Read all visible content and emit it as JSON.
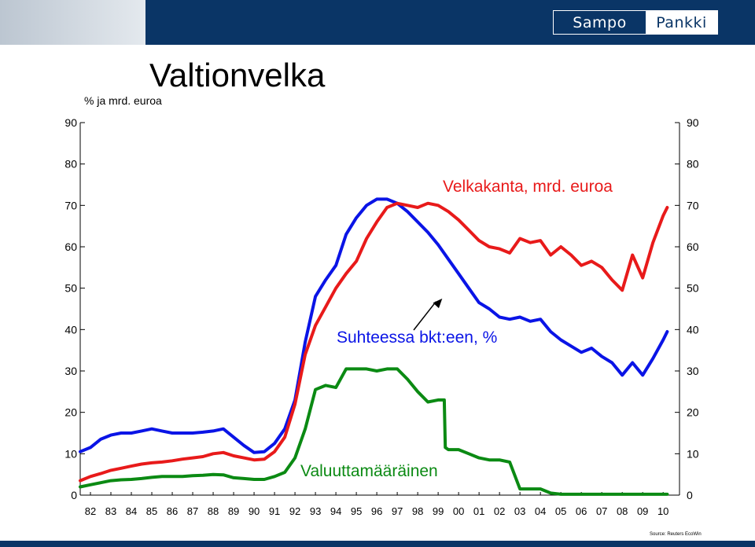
{
  "page": {
    "title": "Valtionvelka",
    "unit_label": "% ja mrd. euroa",
    "logo_left": "Sampo",
    "logo_right": "Pankki",
    "source": "Source: Reuters EcoWin"
  },
  "chart_data": {
    "type": "line",
    "title": "Valtionvelka",
    "ylabel": "% ja mrd. euroa",
    "ylim": [
      0,
      90
    ],
    "yticks": [
      0,
      10,
      20,
      30,
      40,
      50,
      60,
      70,
      80,
      90
    ],
    "xlim": [
      1981.5,
      2010.8
    ],
    "xticks": [
      {
        "x": 1982,
        "label": "82"
      },
      {
        "x": 1983,
        "label": "83"
      },
      {
        "x": 1984,
        "label": "84"
      },
      {
        "x": 1985,
        "label": "85"
      },
      {
        "x": 1986,
        "label": "86"
      },
      {
        "x": 1987,
        "label": "87"
      },
      {
        "x": 1988,
        "label": "88"
      },
      {
        "x": 1989,
        "label": "89"
      },
      {
        "x": 1990,
        "label": "90"
      },
      {
        "x": 1991,
        "label": "91"
      },
      {
        "x": 1992,
        "label": "92"
      },
      {
        "x": 1993,
        "label": "93"
      },
      {
        "x": 1994,
        "label": "94"
      },
      {
        "x": 1995,
        "label": "95"
      },
      {
        "x": 1996,
        "label": "96"
      },
      {
        "x": 1997,
        "label": "97"
      },
      {
        "x": 1998,
        "label": "98"
      },
      {
        "x": 1999,
        "label": "99"
      },
      {
        "x": 2000,
        "label": "00"
      },
      {
        "x": 2001,
        "label": "01"
      },
      {
        "x": 2002,
        "label": "02"
      },
      {
        "x": 2003,
        "label": "03"
      },
      {
        "x": 2004,
        "label": "04"
      },
      {
        "x": 2005,
        "label": "05"
      },
      {
        "x": 2006,
        "label": "06"
      },
      {
        "x": 2007,
        "label": "07"
      },
      {
        "x": 2008,
        "label": "08"
      },
      {
        "x": 2009,
        "label": "09"
      },
      {
        "x": 2010,
        "label": "10"
      }
    ],
    "grid": false,
    "series": [
      {
        "name": "Suhteessa bkt:een, %",
        "color": "#0a14e6",
        "x": [
          1981.5,
          1982.0,
          1982.5,
          1983.0,
          1983.5,
          1984.0,
          1984.5,
          1985.0,
          1985.5,
          1986.0,
          1986.5,
          1987.0,
          1987.5,
          1988.0,
          1988.5,
          1989.0,
          1989.5,
          1990.0,
          1990.5,
          1991.0,
          1991.5,
          1992.0,
          1992.5,
          1993.0,
          1993.5,
          1994.0,
          1994.5,
          1995.0,
          1995.5,
          1996.0,
          1996.5,
          1997.0,
          1997.5,
          1998.0,
          1998.5,
          1999.0,
          1999.5,
          2000.0,
          2000.5,
          2001.0,
          2001.5,
          2002.0,
          2002.5,
          2003.0,
          2003.5,
          2004.0,
          2004.5,
          2005.0,
          2005.5,
          2006.0,
          2006.5,
          2007.0,
          2007.5,
          2008.0,
          2008.5,
          2009.0,
          2009.5,
          2010.0,
          2010.2
        ],
        "y": [
          10.5,
          11.5,
          13.5,
          14.5,
          15.0,
          15.0,
          15.5,
          16.0,
          15.5,
          15.0,
          15.0,
          15.0,
          15.2,
          15.5,
          16.0,
          14.0,
          12.0,
          10.3,
          10.5,
          12.5,
          16.0,
          23.0,
          37.0,
          48.0,
          52.0,
          55.5,
          63.0,
          67.0,
          70.0,
          71.5,
          71.5,
          70.5,
          68.5,
          66.0,
          63.5,
          60.5,
          57.0,
          53.5,
          50.0,
          46.5,
          45.0,
          43.0,
          42.5,
          43.0,
          42.0,
          42.5,
          39.5,
          37.5,
          36.0,
          34.5,
          35.5,
          33.5,
          32.0,
          29.0,
          32.0,
          29.0,
          33.0,
          37.5,
          39.5
        ]
      },
      {
        "name": "Velkakanta, mrd. euroa",
        "color": "#e81a1a",
        "x": [
          1981.5,
          1982.0,
          1982.5,
          1983.0,
          1983.5,
          1984.0,
          1984.5,
          1985.0,
          1985.5,
          1986.0,
          1986.5,
          1987.0,
          1987.5,
          1988.0,
          1988.5,
          1989.0,
          1989.5,
          1990.0,
          1990.5,
          1991.0,
          1991.5,
          1992.0,
          1992.5,
          1993.0,
          1993.5,
          1994.0,
          1994.5,
          1995.0,
          1995.5,
          1996.0,
          1996.5,
          1997.0,
          1997.5,
          1998.0,
          1998.5,
          1999.0,
          1999.5,
          2000.0,
          2000.5,
          2001.0,
          2001.5,
          2002.0,
          2002.5,
          2003.0,
          2003.5,
          2004.0,
          2004.5,
          2005.0,
          2005.5,
          2006.0,
          2006.5,
          2007.0,
          2007.5,
          2008.0,
          2008.5,
          2009.0,
          2009.5,
          2010.0,
          2010.2
        ],
        "y": [
          3.5,
          4.5,
          5.2,
          6.0,
          6.5,
          7.0,
          7.5,
          7.8,
          8.0,
          8.3,
          8.7,
          9.0,
          9.3,
          10.0,
          10.3,
          9.5,
          9.0,
          8.5,
          8.7,
          10.5,
          14.0,
          22.0,
          34.0,
          41.0,
          45.5,
          50.0,
          53.5,
          56.5,
          62.0,
          66.0,
          69.5,
          70.5,
          70.0,
          69.5,
          70.5,
          70.0,
          68.5,
          66.5,
          64.0,
          61.5,
          60.0,
          59.5,
          58.5,
          62.0,
          61.0,
          61.5,
          58.0,
          60.0,
          58.0,
          55.5,
          56.5,
          55.0,
          52.0,
          49.5,
          58.0,
          52.5,
          61.0,
          67.5,
          69.5
        ]
      },
      {
        "name": "Valuuttamääräinen",
        "color": "#0b8a13",
        "x": [
          1981.5,
          1982.0,
          1982.5,
          1983.0,
          1983.5,
          1984.0,
          1984.5,
          1985.0,
          1985.5,
          1986.0,
          1986.5,
          1987.0,
          1987.5,
          1988.0,
          1988.5,
          1989.0,
          1989.5,
          1990.0,
          1990.5,
          1991.0,
          1991.5,
          1992.0,
          1992.5,
          1993.0,
          1993.5,
          1994.0,
          1994.5,
          1995.0,
          1995.5,
          1996.0,
          1996.5,
          1997.0,
          1997.5,
          1998.0,
          1998.5,
          1999.0,
          1999.3,
          1999.35,
          1999.5,
          2000.0,
          2000.5,
          2001.0,
          2001.5,
          2002.0,
          2002.5,
          2003.0,
          2003.5,
          2004.0,
          2004.5,
          2005.0,
          2006.0,
          2007.0,
          2008.0,
          2009.0,
          2010.0,
          2010.2
        ],
        "y": [
          2.0,
          2.5,
          3.0,
          3.5,
          3.7,
          3.8,
          4.0,
          4.3,
          4.5,
          4.5,
          4.5,
          4.7,
          4.8,
          5.0,
          4.9,
          4.2,
          4.0,
          3.8,
          3.8,
          4.5,
          5.5,
          9.0,
          16.0,
          25.5,
          26.5,
          26.0,
          30.5,
          30.5,
          30.5,
          30.0,
          30.5,
          30.5,
          28.0,
          25.0,
          22.5,
          23.0,
          23.0,
          11.5,
          11.0,
          11.0,
          10.0,
          9.0,
          8.5,
          8.5,
          8.0,
          1.5,
          1.5,
          1.5,
          0.5,
          0.2,
          0.2,
          0.2,
          0.2,
          0.2,
          0.2,
          0.2
        ]
      }
    ],
    "annotations": [
      {
        "text": "Velkakanta, mrd. euroa",
        "color": "#e81a1a",
        "series": "Velkakanta, mrd. euroa"
      },
      {
        "text": "Suhteessa bkt:een, %",
        "color": "#0a14e6",
        "series": "Suhteessa bkt:een, %",
        "arrow": true
      },
      {
        "text": "Valuuttamääräinen",
        "color": "#0b8a13",
        "series": "Valuuttamääräinen"
      }
    ]
  }
}
